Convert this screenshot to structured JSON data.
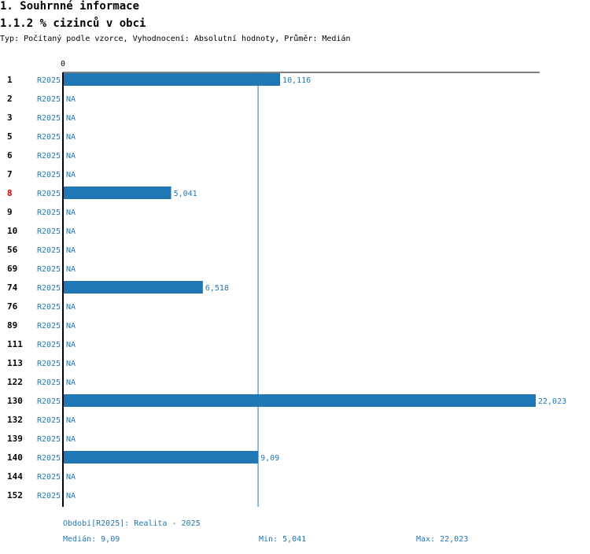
{
  "header": {
    "title": "1. Souhrnné informace",
    "subtitle": "1.1.2 % cizinců v obci",
    "meta": "Typ: Počítaný podle vzorce, Vyhodnocení: Absolutní hodnoty, Průměr: Medián"
  },
  "chart_data": {
    "type": "bar",
    "orientation": "horizontal",
    "x_tick_label": "0",
    "xlim": [
      0,
      22.023
    ],
    "period_label": "R2025",
    "highlight_category": "8",
    "na_text": "NA",
    "median_line": 9.09,
    "rows": [
      {
        "category": "1",
        "value": 10.116,
        "label": "10,116"
      },
      {
        "category": "2",
        "value": null,
        "label": "NA"
      },
      {
        "category": "3",
        "value": null,
        "label": "NA"
      },
      {
        "category": "5",
        "value": null,
        "label": "NA"
      },
      {
        "category": "6",
        "value": null,
        "label": "NA"
      },
      {
        "category": "7",
        "value": null,
        "label": "NA"
      },
      {
        "category": "8",
        "value": 5.041,
        "label": "5,041"
      },
      {
        "category": "9",
        "value": null,
        "label": "NA"
      },
      {
        "category": "10",
        "value": null,
        "label": "NA"
      },
      {
        "category": "56",
        "value": null,
        "label": "NA"
      },
      {
        "category": "69",
        "value": null,
        "label": "NA"
      },
      {
        "category": "74",
        "value": 6.518,
        "label": "6,518"
      },
      {
        "category": "76",
        "value": null,
        "label": "NA"
      },
      {
        "category": "89",
        "value": null,
        "label": "NA"
      },
      {
        "category": "111",
        "value": null,
        "label": "NA"
      },
      {
        "category": "113",
        "value": null,
        "label": "NA"
      },
      {
        "category": "122",
        "value": null,
        "label": "NA"
      },
      {
        "category": "130",
        "value": 22.023,
        "label": "22,023"
      },
      {
        "category": "132",
        "value": null,
        "label": "NA"
      },
      {
        "category": "139",
        "value": null,
        "label": "NA"
      },
      {
        "category": "140",
        "value": 9.09,
        "label": "9,09"
      },
      {
        "category": "144",
        "value": null,
        "label": "NA"
      },
      {
        "category": "152",
        "value": null,
        "label": "NA"
      }
    ],
    "colors": {
      "bar": "#1f77b4",
      "highlight": "#e00000"
    }
  },
  "footer": {
    "period": "Období[R2025]: Realita - 2025",
    "median": "Medián: 9,09",
    "min": "Min: 5,041",
    "max": "Max: 22,023"
  }
}
